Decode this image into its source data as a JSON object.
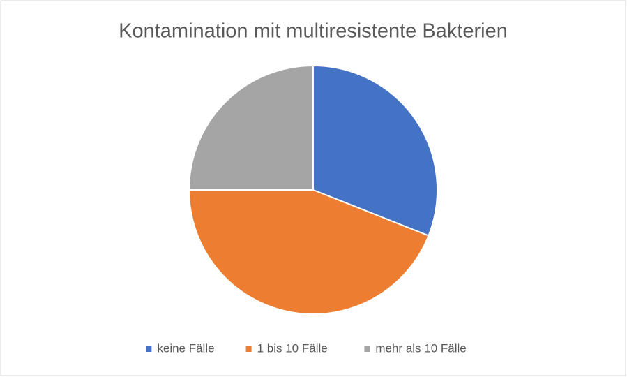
{
  "chart_data": {
    "type": "pie",
    "title": "Kontamination mit multiresistente Bakterien",
    "categories": [
      "keine Fälle",
      "1 bis 10 Fälle",
      "mehr als 10 Fälle"
    ],
    "values": [
      31,
      44,
      25
    ],
    "colors": [
      "#4472c4",
      "#ed7d31",
      "#a5a5a5"
    ],
    "legend": "bottom"
  }
}
